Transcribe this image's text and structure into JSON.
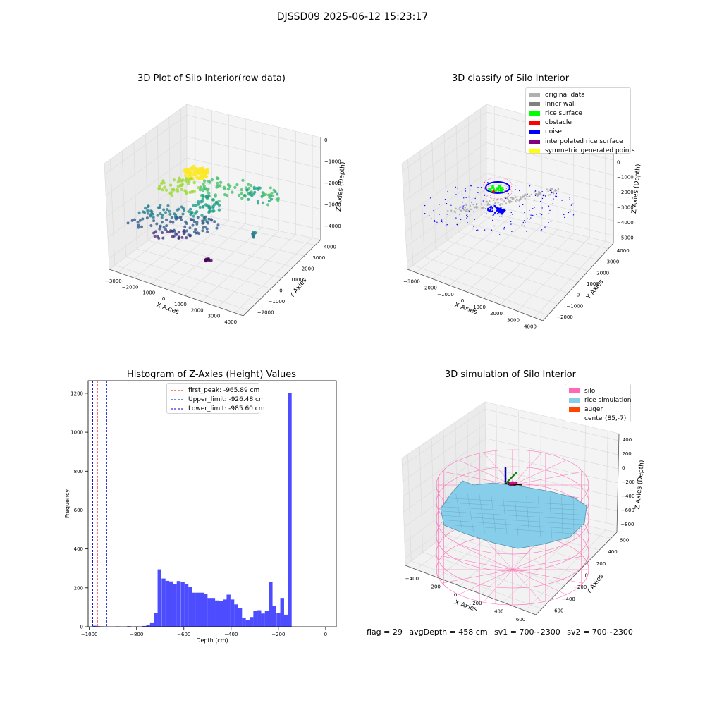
{
  "suptitle": "DJSSD09 2025-06-12 15:23:17",
  "chart_data": [
    {
      "type": "scatter3d",
      "title": "3D Plot of Silo Interior(row data)",
      "xlabel": "X Axies",
      "ylabel": "Y Axies",
      "zlabel": "Z Axies (Depth)",
      "x_ticks": [
        "−3000",
        "−2000",
        "−1000",
        "0",
        "1000",
        "2000",
        "3000",
        "4000"
      ],
      "y_ticks": [
        "−2000",
        "−1000",
        "0",
        "1000",
        "2000",
        "3000",
        "4000"
      ],
      "z_ticks": [
        "0",
        "−1000",
        "−2000",
        "−3000",
        "−4000"
      ],
      "colormap": "viridis"
    },
    {
      "type": "scatter3d",
      "title": "3D classify of Silo Interior",
      "xlabel": "X Axies",
      "ylabel": "Y Axies",
      "zlabel": "Z Axies (Depth)",
      "x_ticks": [
        "−3000",
        "−2000",
        "−1000",
        "0",
        "1000",
        "2000",
        "3000",
        "4000"
      ],
      "y_ticks": [
        "−2000",
        "−1000",
        "0",
        "1000",
        "2000",
        "3000",
        "4000"
      ],
      "z_ticks": [
        "1000",
        "0",
        "−1000",
        "−2000",
        "−3000",
        "−4000",
        "−5000"
      ],
      "legend": [
        {
          "label": "original data",
          "color": "#b0b0b0"
        },
        {
          "label": "inner wall",
          "color": "#808080"
        },
        {
          "label": "rice surface",
          "color": "#00ff00"
        },
        {
          "label": "obstacle",
          "color": "#ff0000"
        },
        {
          "label": "noise",
          "color": "#0000ff"
        },
        {
          "label": "interpolated rice surface",
          "color": "#800080"
        },
        {
          "label": "symmetric generated points",
          "color": "#ffff00"
        }
      ]
    },
    {
      "type": "histogram",
      "title": "Histogram of Z-Axies (Height) Values",
      "xlabel": "Depth (cm)",
      "ylabel": "Frequency",
      "xlim": [
        -1005,
        45
      ],
      "ylim": [
        0,
        1265
      ],
      "bin_width": 16.2,
      "bins": [
        {
          "x": -986,
          "v": 5
        },
        {
          "x": -970,
          "v": 3
        },
        {
          "x": -954,
          "v": 2
        },
        {
          "x": -937,
          "v": 1
        },
        {
          "x": -889,
          "v": 2
        },
        {
          "x": -840,
          "v": 3
        },
        {
          "x": -808,
          "v": 2
        },
        {
          "x": -775,
          "v": 4
        },
        {
          "x": -759,
          "v": 8
        },
        {
          "x": -743,
          "v": 22
        },
        {
          "x": -727,
          "v": 70
        },
        {
          "x": -711,
          "v": 295
        },
        {
          "x": -694,
          "v": 248
        },
        {
          "x": -678,
          "v": 236
        },
        {
          "x": -662,
          "v": 233
        },
        {
          "x": -646,
          "v": 218
        },
        {
          "x": -630,
          "v": 235
        },
        {
          "x": -613,
          "v": 230
        },
        {
          "x": -597,
          "v": 218
        },
        {
          "x": -581,
          "v": 205
        },
        {
          "x": -565,
          "v": 175
        },
        {
          "x": -549,
          "v": 175
        },
        {
          "x": -532,
          "v": 175
        },
        {
          "x": -516,
          "v": 168
        },
        {
          "x": -500,
          "v": 148
        },
        {
          "x": -484,
          "v": 148
        },
        {
          "x": -468,
          "v": 135
        },
        {
          "x": -451,
          "v": 132
        },
        {
          "x": -435,
          "v": 140
        },
        {
          "x": -419,
          "v": 165
        },
        {
          "x": -403,
          "v": 140
        },
        {
          "x": -387,
          "v": 115
        },
        {
          "x": -370,
          "v": 95
        },
        {
          "x": -354,
          "v": 45
        },
        {
          "x": -338,
          "v": 35
        },
        {
          "x": -322,
          "v": 50
        },
        {
          "x": -306,
          "v": 80
        },
        {
          "x": -289,
          "v": 85
        },
        {
          "x": -273,
          "v": 68
        },
        {
          "x": -257,
          "v": 80
        },
        {
          "x": -241,
          "v": 230
        },
        {
          "x": -225,
          "v": 108
        },
        {
          "x": -208,
          "v": 70
        },
        {
          "x": -192,
          "v": 148
        },
        {
          "x": -176,
          "v": 62
        },
        {
          "x": -160,
          "v": 1202
        }
      ],
      "x_offset_note": "",
      "vlines": [
        {
          "label": "first_peak: -965.89 cm",
          "x": -965.89,
          "color": "#ff0000"
        },
        {
          "label": "Upper_limit: -926.48 cm",
          "x": -926.48,
          "color": "#0000cc"
        },
        {
          "label": "Lower_limit: -985.60 cm",
          "x": -985.6,
          "color": "#0000cc"
        }
      ],
      "x_ticks": [
        -1000,
        -800,
        -600,
        -400,
        -200,
        0
      ],
      "x_tick_labels": [
        "−1000",
        "−800",
        "−600",
        "−400",
        "−200",
        "0"
      ],
      "y_ticks": [
        0,
        200,
        400,
        600,
        800,
        1000,
        1200
      ],
      "bar_color": "#4d4dff"
    },
    {
      "type": "surface3d",
      "title": "3D simulation of Silo Interior",
      "xlabel": "X Axies",
      "ylabel": "Y Axies",
      "zlabel": "Z Axies (Depth)",
      "x_ticks": [
        "−400",
        "−200",
        "0",
        "200",
        "400",
        "600"
      ],
      "y_ticks": [
        "−600",
        "−400",
        "−200",
        "0",
        "200",
        "400",
        "600"
      ],
      "z_ticks": [
        "400",
        "200",
        "0",
        "−200",
        "−400",
        "−600",
        "−800"
      ],
      "legend": [
        {
          "label": "silo",
          "color": "#ff69b4"
        },
        {
          "label": "rice simulation",
          "color": "#87ceeb"
        },
        {
          "label": "auger",
          "color": "#ff4500"
        },
        {
          "label": "center(85,-7)",
          "color": "#ffffff"
        }
      ]
    }
  ],
  "footer": {
    "flag": "flag = 29",
    "avg_depth": "avgDepth = 458 cm",
    "sv1": "sv1 = 700~2300",
    "sv2": "sv2 = 700~2300"
  }
}
